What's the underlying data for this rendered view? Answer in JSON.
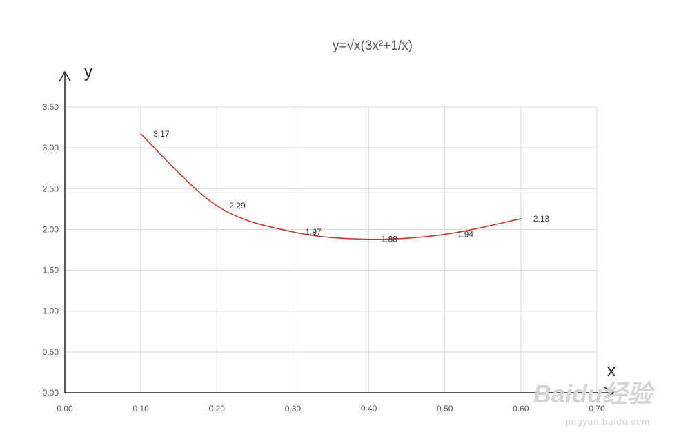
{
  "chart_data": {
    "type": "line",
    "title": "y=√x(3x²+1/x)",
    "xlabel": "x",
    "ylabel": "y",
    "xlim": [
      0,
      0.7
    ],
    "ylim": [
      0,
      3.5
    ],
    "x_ticks": [
      "0.00",
      "0.10",
      "0.20",
      "0.30",
      "0.40",
      "0.50",
      "0.60",
      "0.70"
    ],
    "y_ticks": [
      "0.00",
      "0.50",
      "1.00",
      "1.50",
      "2.00",
      "2.50",
      "3.00",
      "3.50"
    ],
    "grid": true,
    "series": [
      {
        "color": "#c0392b",
        "x": [
          0.1,
          0.2,
          0.3,
          0.4,
          0.5,
          0.6
        ],
        "values": [
          3.17,
          2.29,
          1.97,
          1.88,
          1.94,
          2.13
        ],
        "labels": [
          "3.17",
          "2.29",
          "1.97",
          "1.88",
          "1.94",
          "2.13"
        ]
      }
    ]
  },
  "watermark": {
    "logo_text": "Baidu经验",
    "url_text": "jingyan.baidu.com"
  }
}
